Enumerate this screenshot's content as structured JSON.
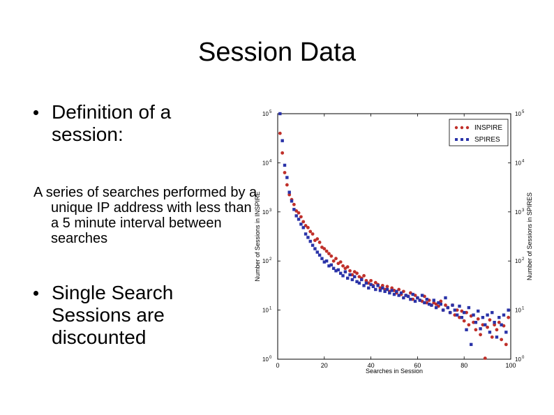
{
  "slide": {
    "title": "Session Data",
    "bullet1": "Definition of a session:",
    "definition": "A series of searches performed by a unique IP address with less than a 5 minute interval between searches",
    "bullet2": "Single Search Sessions are discounted"
  },
  "chart_data": {
    "type": "scatter",
    "title": "",
    "xlabel": "Searches in Session",
    "ylabel_left": "Number of Sessions in INSPIRE",
    "ylabel_right": "Number of Sessions in SPIRES",
    "xlim": [
      0,
      100
    ],
    "ylim": [
      0,
      5
    ],
    "x_ticks": [
      "0",
      "20",
      "40",
      "60",
      "80",
      "100"
    ],
    "y_tick_bases": [
      "10",
      "10",
      "10",
      "10",
      "10",
      "10"
    ],
    "y_tick_exponents": [
      "0",
      "1",
      "2",
      "3",
      "4",
      "5"
    ],
    "legend_position": "top-right",
    "series": [
      {
        "name": "INSPIRE",
        "marker": "circle",
        "color": "#c0302a",
        "x": [
          1,
          2,
          3,
          4,
          5,
          6,
          7,
          8,
          9,
          10,
          11,
          12,
          13,
          14,
          15,
          16,
          17,
          18,
          19,
          20,
          21,
          22,
          23,
          24,
          25,
          26,
          27,
          28,
          29,
          30,
          31,
          32,
          33,
          34,
          35,
          36,
          37,
          38,
          39,
          40,
          41,
          42,
          43,
          44,
          45,
          46,
          47,
          48,
          49,
          50,
          51,
          52,
          53,
          54,
          55,
          56,
          57,
          58,
          59,
          60,
          61,
          62,
          63,
          64,
          65,
          66,
          67,
          68,
          69,
          70,
          71,
          72,
          73,
          74,
          75,
          76,
          77,
          78,
          79,
          80,
          81,
          82,
          83,
          84,
          85,
          86,
          87,
          88,
          89,
          90,
          91,
          92,
          93,
          94,
          95,
          96,
          97,
          98,
          99
        ],
        "y": [
          4.6,
          4.2,
          3.8,
          3.55,
          3.35,
          3.25,
          3.15,
          3.02,
          2.98,
          2.9,
          2.8,
          2.72,
          2.68,
          2.6,
          2.55,
          2.42,
          2.45,
          2.38,
          2.28,
          2.25,
          2.2,
          2.15,
          2.1,
          2.0,
          2.05,
          1.95,
          1.98,
          1.9,
          1.85,
          1.88,
          1.8,
          1.72,
          1.78,
          1.75,
          1.68,
          1.65,
          1.7,
          1.6,
          1.55,
          1.6,
          1.5,
          1.56,
          1.52,
          1.45,
          1.5,
          1.42,
          1.48,
          1.38,
          1.45,
          1.4,
          1.35,
          1.42,
          1.32,
          1.38,
          1.3,
          1.28,
          1.35,
          1.22,
          1.3,
          1.25,
          1.2,
          1.18,
          1.28,
          1.15,
          1.2,
          1.1,
          1.15,
          1.12,
          1.08,
          1.18,
          1.0,
          1.1,
          1.05,
          0.95,
          1.1,
          0.9,
          1.0,
          0.85,
          0.98,
          0.78,
          0.95,
          0.7,
          0.88,
          0.75,
          0.6,
          0.82,
          0.5,
          0.7,
          0.02,
          0.65,
          0.8,
          0.45,
          0.7,
          0.6,
          0.75,
          0.4,
          0.68,
          0.3,
          0.85
        ]
      },
      {
        "name": "SPIRES",
        "marker": "square",
        "color": "#2a33a8",
        "x": [
          1,
          2,
          3,
          4,
          5,
          6,
          7,
          8,
          9,
          10,
          11,
          12,
          13,
          14,
          15,
          16,
          17,
          18,
          19,
          20,
          21,
          22,
          23,
          24,
          25,
          26,
          27,
          28,
          29,
          30,
          31,
          32,
          33,
          34,
          35,
          36,
          37,
          38,
          39,
          40,
          41,
          42,
          43,
          44,
          45,
          46,
          47,
          48,
          49,
          50,
          51,
          52,
          53,
          54,
          55,
          56,
          57,
          58,
          59,
          60,
          61,
          62,
          63,
          64,
          65,
          66,
          67,
          68,
          69,
          70,
          71,
          72,
          73,
          74,
          75,
          76,
          77,
          78,
          79,
          80,
          81,
          82,
          83,
          84,
          85,
          86,
          87,
          88,
          89,
          90,
          91,
          92,
          93,
          94,
          95,
          96,
          97,
          98,
          99
        ],
        "y": [
          5.0,
          4.45,
          3.95,
          3.7,
          3.4,
          3.22,
          3.05,
          2.92,
          2.85,
          2.75,
          2.68,
          2.55,
          2.48,
          2.4,
          2.32,
          2.25,
          2.18,
          2.12,
          2.05,
          1.98,
          2.0,
          1.9,
          1.92,
          1.85,
          1.8,
          1.82,
          1.75,
          1.7,
          1.78,
          1.65,
          1.72,
          1.62,
          1.68,
          1.58,
          1.55,
          1.62,
          1.5,
          1.55,
          1.45,
          1.52,
          1.48,
          1.42,
          1.5,
          1.4,
          1.45,
          1.38,
          1.42,
          1.35,
          1.4,
          1.32,
          1.38,
          1.3,
          1.35,
          1.25,
          1.3,
          1.28,
          1.22,
          1.32,
          1.18,
          1.25,
          1.2,
          1.3,
          1.15,
          1.22,
          1.12,
          1.1,
          1.2,
          1.05,
          1.15,
          1.12,
          1.0,
          1.25,
          1.05,
          0.95,
          1.1,
          1.0,
          0.9,
          1.08,
          0.85,
          0.95,
          0.6,
          1.05,
          0.3,
          0.9,
          0.75,
          0.98,
          0.62,
          0.85,
          0.7,
          0.9,
          0.55,
          0.95,
          0.75,
          0.45,
          0.85,
          0.7,
          0.9,
          0.55,
          1.0
        ]
      }
    ]
  }
}
